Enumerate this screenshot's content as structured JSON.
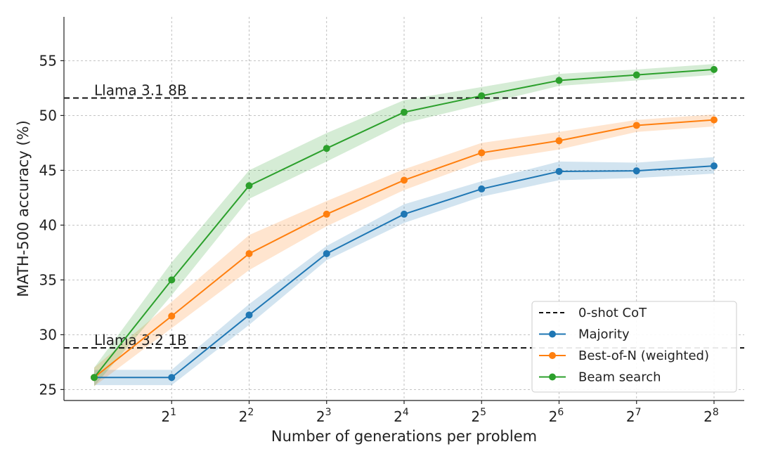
{
  "chart_data": {
    "type": "line",
    "title": "",
    "xlabel": "Number of generations per problem",
    "ylabel": "MATH-500 accuracy (%)",
    "x_scale": "log2",
    "x": [
      1,
      2,
      4,
      8,
      16,
      32,
      64,
      128,
      256
    ],
    "x_ticks": [
      {
        "value": 2,
        "base": "2",
        "exp": "1"
      },
      {
        "value": 4,
        "base": "2",
        "exp": "2"
      },
      {
        "value": 8,
        "base": "2",
        "exp": "3"
      },
      {
        "value": 16,
        "base": "2",
        "exp": "4"
      },
      {
        "value": 32,
        "base": "2",
        "exp": "5"
      },
      {
        "value": 64,
        "base": "2",
        "exp": "6"
      },
      {
        "value": 128,
        "base": "2",
        "exp": "7"
      },
      {
        "value": 256,
        "base": "2",
        "exp": "8"
      }
    ],
    "y_ticks": [
      25,
      30,
      35,
      40,
      45,
      50,
      55
    ],
    "ylim": [
      24,
      59
    ],
    "grid": true,
    "legend_position": "bottom-right",
    "reference_lines": [
      {
        "label": "Llama 3.1 8B",
        "value": 51.6
      },
      {
        "label": "Llama 3.2 1B",
        "value": 28.8
      }
    ],
    "series": [
      {
        "name": "Majority",
        "color": "#1f77b4",
        "values": [
          26.1,
          26.1,
          31.8,
          37.4,
          41.0,
          43.3,
          44.9,
          44.95,
          45.4
        ],
        "lower": [
          25.4,
          25.4,
          30.9,
          36.8,
          40.2,
          42.6,
          44.1,
          44.3,
          44.7
        ],
        "upper": [
          26.8,
          26.8,
          32.8,
          38.1,
          41.9,
          44.0,
          45.8,
          45.7,
          46.2
        ]
      },
      {
        "name": "Best-of-N (weighted)",
        "color": "#ff7f0e",
        "values": [
          26.1,
          31.7,
          37.4,
          41.0,
          44.1,
          46.6,
          47.7,
          49.1,
          49.6
        ],
        "lower": [
          25.3,
          30.6,
          35.9,
          39.9,
          43.2,
          45.8,
          46.9,
          48.5,
          49.0
        ],
        "upper": [
          27.0,
          33.0,
          39.1,
          42.2,
          45.1,
          47.5,
          48.5,
          49.6,
          50.1
        ]
      },
      {
        "name": "Beam search",
        "color": "#2ca02c",
        "values": [
          26.1,
          35.0,
          43.6,
          47.0,
          50.3,
          51.8,
          53.2,
          53.7,
          54.2
        ],
        "lower": [
          25.3,
          33.6,
          42.4,
          45.8,
          49.3,
          51.0,
          52.7,
          53.2,
          53.7
        ],
        "upper": [
          27.0,
          36.6,
          45.0,
          48.4,
          51.4,
          52.6,
          53.8,
          54.2,
          54.7
        ]
      }
    ],
    "legend": [
      {
        "label": "0-shot CoT",
        "style": "dashed",
        "color": "#111111"
      },
      {
        "label": "Majority",
        "style": "marker-line",
        "color": "#1f77b4"
      },
      {
        "label": "Best-of-N (weighted)",
        "style": "marker-line",
        "color": "#ff7f0e"
      },
      {
        "label": "Beam search",
        "style": "marker-line",
        "color": "#2ca02c"
      }
    ]
  }
}
